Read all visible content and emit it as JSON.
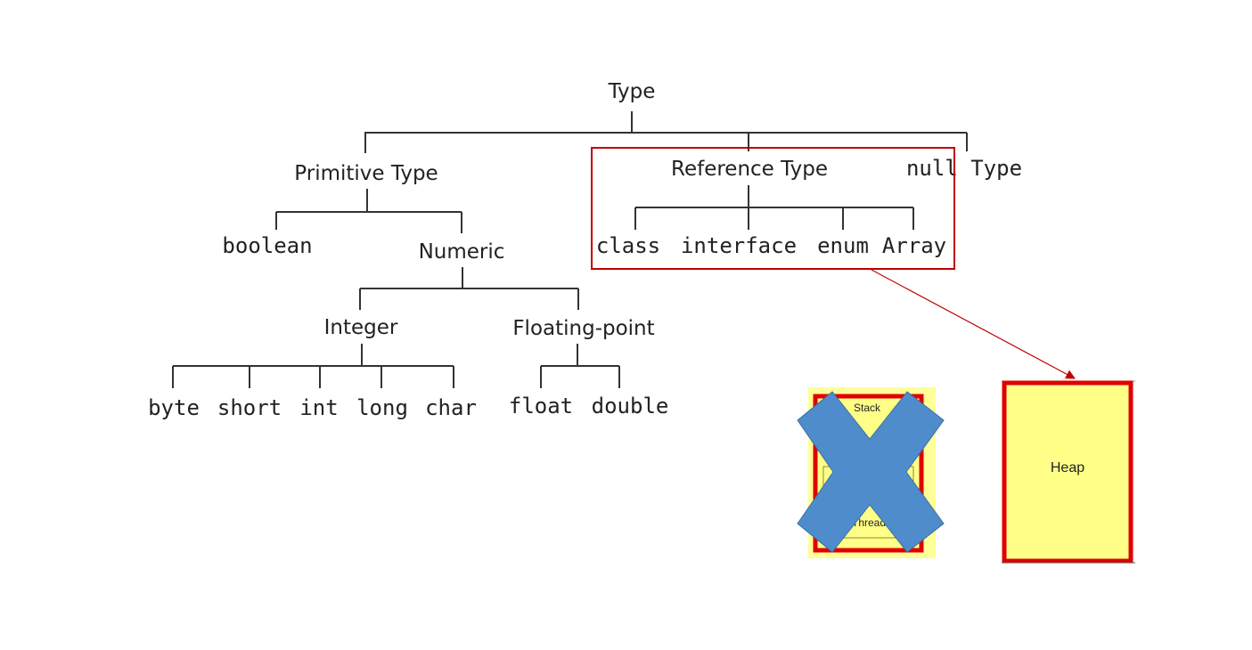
{
  "tree": {
    "root": "Type",
    "primitive": "Primitive Type",
    "reference": "Reference Type",
    "null_type": "null Type",
    "boolean": "boolean",
    "numeric": "Numeric",
    "integer": "Integer",
    "floating_point": "Floating-point",
    "integer_types": [
      "byte",
      "short",
      "int",
      "long",
      "char"
    ],
    "float_types": [
      "float",
      "double"
    ],
    "reference_types": [
      "class",
      "interface",
      "enum",
      "Array"
    ]
  },
  "memory": {
    "stack_label": "Stack",
    "thread_label": "Thread",
    "heap_label": "Heap"
  },
  "colors": {
    "line": "#333333",
    "highlight": "#c00000",
    "memory_fill": "#ffff88",
    "memory_border": "#e00000",
    "cross": "#4f8ccb"
  },
  "icons": {
    "cross": "x-mark-icon",
    "arrow": "arrow-icon"
  }
}
